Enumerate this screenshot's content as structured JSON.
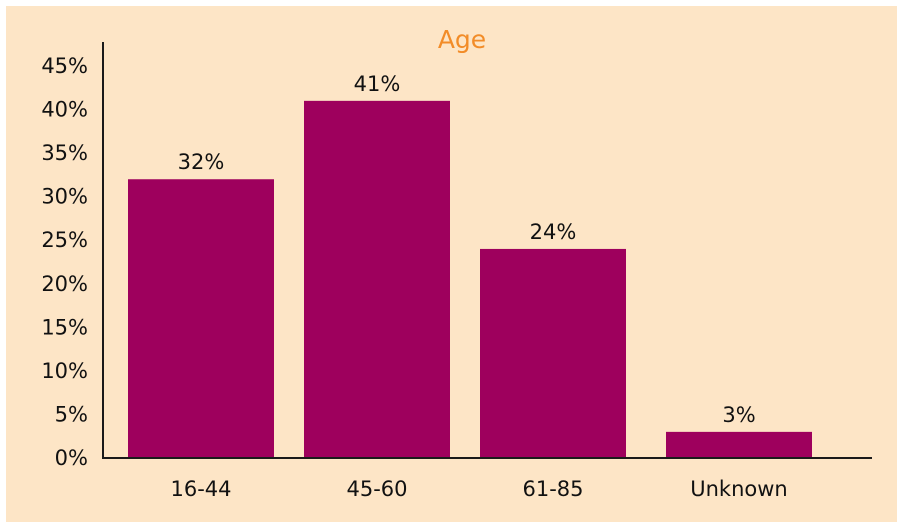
{
  "chart_data": {
    "type": "bar",
    "title": "Age",
    "xlabel": "",
    "ylabel": "",
    "categories": [
      "16-44",
      "45-60",
      "61-85",
      "Unknown"
    ],
    "values": [
      32,
      41,
      24,
      3
    ],
    "value_labels": [
      "32%",
      "41%",
      "24%",
      "3%"
    ],
    "ylim": [
      0,
      45
    ],
    "yticks": [
      0,
      5,
      10,
      15,
      20,
      25,
      30,
      35,
      40,
      45
    ],
    "ytick_labels": [
      "0%",
      "5%",
      "10%",
      "15%",
      "20%",
      "25%",
      "30%",
      "35%",
      "40%",
      "45%"
    ],
    "grid": false,
    "legend": "none",
    "colors": {
      "bar": "#9e005d",
      "title": "#f28c28",
      "background": "#fde5c6",
      "axis": "#1a1a1a"
    }
  }
}
